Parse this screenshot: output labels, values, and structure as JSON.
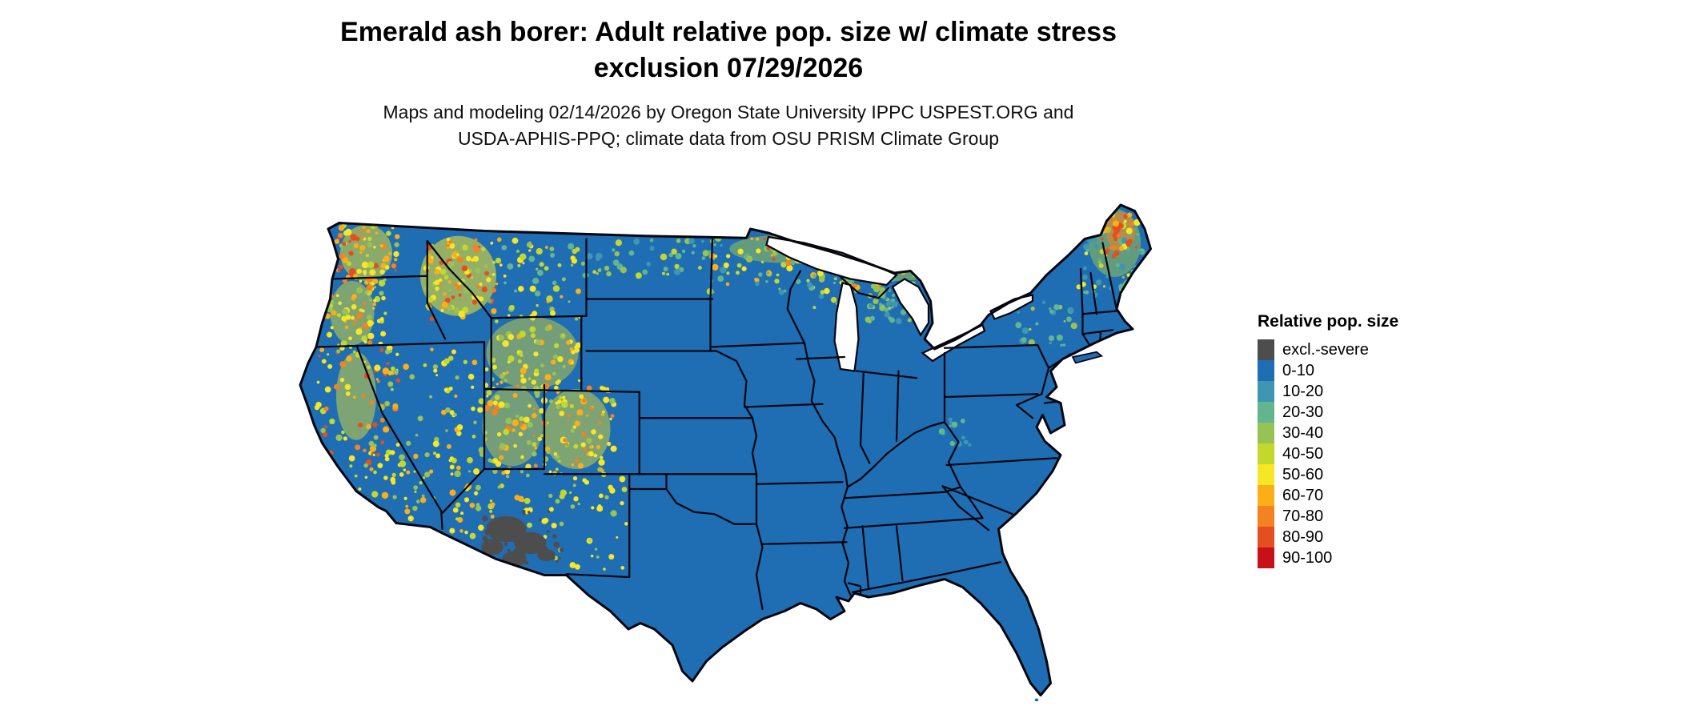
{
  "title": {
    "line1": "Emerald ash borer: Adult relative pop. size w/ climate stress",
    "line2": "exclusion 07/29/2026"
  },
  "subtitle": {
    "line1": "Maps and modeling 02/14/2026 by Oregon State University IPPC USPEST.ORG and",
    "line2": "USDA-APHIS-PPQ; climate data from OSU PRISM Climate Group"
  },
  "legend": {
    "title": "Relative pop. size",
    "items": [
      {
        "label": "excl.-severe",
        "color": "#4d4d4d"
      },
      {
        "label": "0-10",
        "color": "#1f6eb3"
      },
      {
        "label": "10-20",
        "color": "#3d97b2"
      },
      {
        "label": "20-30",
        "color": "#62b58f"
      },
      {
        "label": "30-40",
        "color": "#97c354"
      },
      {
        "label": "40-50",
        "color": "#c3d82e"
      },
      {
        "label": "50-60",
        "color": "#f5e626"
      },
      {
        "label": "60-70",
        "color": "#fbae17"
      },
      {
        "label": "70-80",
        "color": "#f58220"
      },
      {
        "label": "80-90",
        "color": "#e54e21"
      },
      {
        "label": "90-100",
        "color": "#c8101a"
      }
    ]
  },
  "map": {
    "base_color": "#1f6eb3",
    "exclusion_color": "#4d4d4d",
    "border_color": "#05060f",
    "water_color": "#ffffff"
  }
}
